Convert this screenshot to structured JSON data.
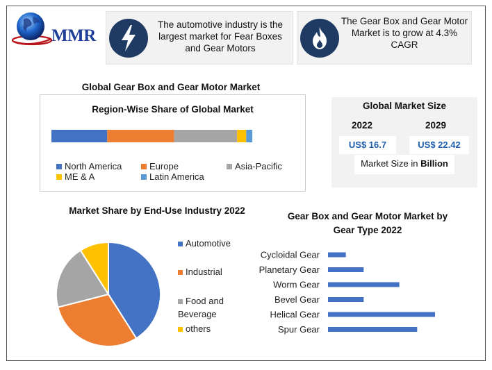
{
  "logo": {
    "text": "MMR"
  },
  "facts": [
    {
      "icon": "lightning-icon",
      "text": "The automotive industry is the largest market for Fear Boxes and Gear Motors"
    },
    {
      "icon": "flame-icon",
      "text": "The Gear Box and Gear Motor Market is to grow at 4.3% CAGR"
    }
  ],
  "main_title": "Global Gear Box and Gear Motor Market",
  "market_size": {
    "title": "Global Market Size",
    "years": [
      "2022",
      "2029"
    ],
    "values": [
      "US$ 16.7",
      "US$ 22.42"
    ],
    "note_prefix": "Market Size in ",
    "note_bold": "Billion",
    "accent": "#1f5fae"
  },
  "chart_data": [
    {
      "type": "bar",
      "orientation": "horizontal-stacked",
      "title": "Region-Wise Share of Global Market",
      "categories": [
        "North America",
        "Europe",
        "Asia-Pacific",
        "ME & A",
        "Latin America"
      ],
      "values": [
        27.5,
        33,
        31,
        4.5,
        3
      ],
      "colors": [
        "#4472c4",
        "#ed7d31",
        "#a5a5a5",
        "#ffc000",
        "#5b9bd5"
      ],
      "xlim": [
        0,
        100
      ],
      "legend": "bottom"
    },
    {
      "type": "pie",
      "title": "Market Share by End-Use Industry 2022",
      "categories": [
        "Automotive",
        "Industrial",
        "Food and Beverage",
        "others"
      ],
      "values": [
        41,
        30,
        20,
        9
      ],
      "colors": [
        "#4472c4",
        "#ed7d31",
        "#a5a5a5",
        "#ffc000"
      ],
      "legend": "right"
    },
    {
      "type": "bar",
      "orientation": "horizontal",
      "title": "Gear Box and Gear Motor Market by Gear Type 2022",
      "categories": [
        "Cycloidal Gear",
        "Planetary Gear",
        "Worm Gear",
        "Bevel Gear",
        "Helical Gear",
        "Spur Gear"
      ],
      "values": [
        1,
        2,
        4,
        2,
        6,
        5
      ],
      "color": "#4472c4",
      "xlim": [
        0,
        6
      ],
      "grid": false
    }
  ]
}
